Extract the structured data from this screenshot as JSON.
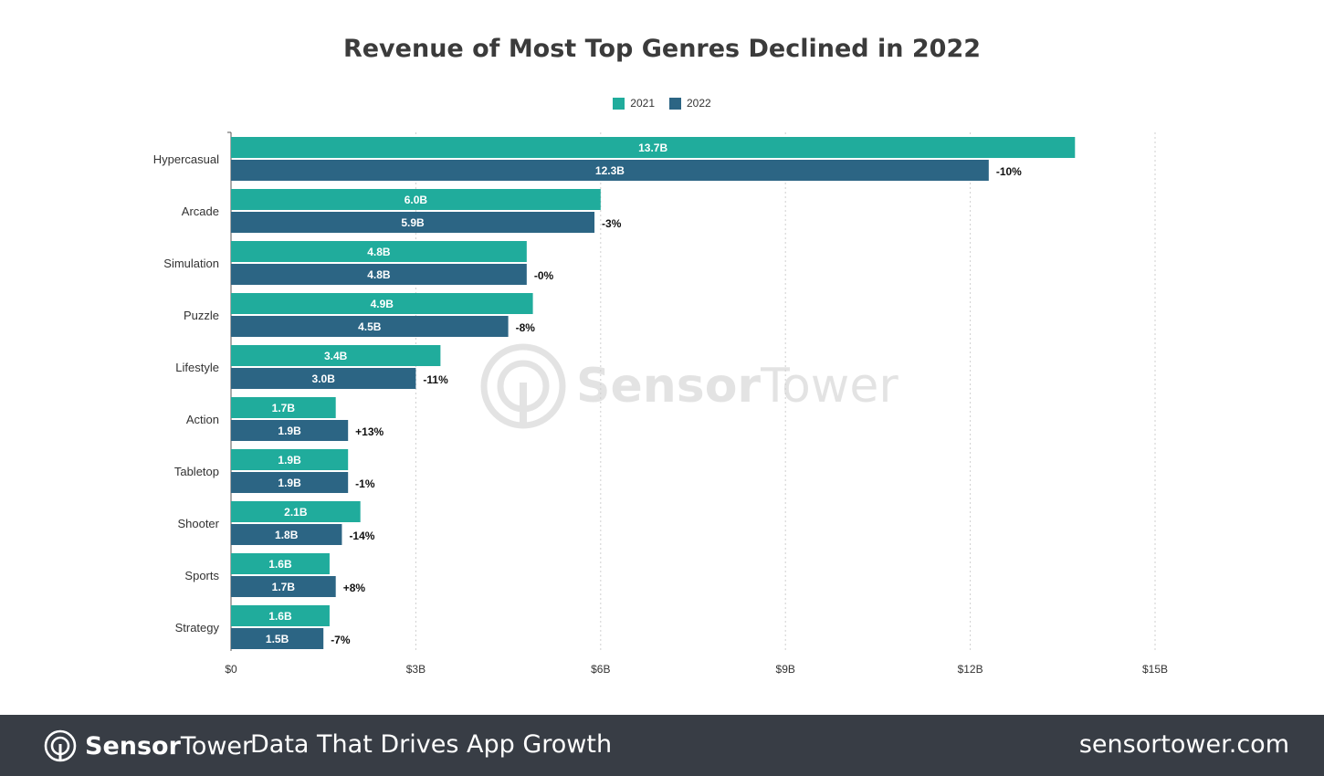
{
  "chart_data": {
    "type": "bar",
    "orientation": "horizontal",
    "title": "Revenue of Most Top Genres Declined in 2022",
    "categories": [
      "Hypercasual",
      "Arcade",
      "Simulation",
      "Puzzle",
      "Lifestyle",
      "Action",
      "Tabletop",
      "Shooter",
      "Sports",
      "Strategy"
    ],
    "series": [
      {
        "name": "2021",
        "color": "#20ac9c",
        "values": [
          13.7,
          6.0,
          4.8,
          4.9,
          3.4,
          1.7,
          1.9,
          2.1,
          1.6,
          1.6
        ],
        "labels": [
          "13.7B",
          "6.0B",
          "4.8B",
          "4.9B",
          "3.4B",
          "1.7B",
          "1.9B",
          "2.1B",
          "1.6B",
          "1.6B"
        ]
      },
      {
        "name": "2022",
        "color": "#2c6584",
        "values": [
          12.3,
          5.9,
          4.8,
          4.5,
          3.0,
          1.9,
          1.9,
          1.8,
          1.7,
          1.5
        ],
        "labels": [
          "12.3B",
          "5.9B",
          "4.8B",
          "4.5B",
          "3.0B",
          "1.9B",
          "1.9B",
          "1.8B",
          "1.7B",
          "1.5B"
        ]
      }
    ],
    "change_labels": [
      "-10%",
      "-3%",
      "-0%",
      "-8%",
      "-11%",
      "+13%",
      "-1%",
      "-14%",
      "+8%",
      "-7%"
    ],
    "xlim": [
      0,
      15
    ],
    "xticks": [
      0,
      3,
      6,
      9,
      12,
      15
    ],
    "xtick_labels": [
      "$0",
      "$3B",
      "$6B",
      "$9B",
      "$12B",
      "$15B"
    ],
    "xlabel": "",
    "ylabel": "",
    "grid": "vertical dotted",
    "legend_position": "top-center"
  },
  "watermark": {
    "bold": "Sensor",
    "light": "Tower"
  },
  "footer": {
    "brand_bold": "Sensor",
    "brand_light": "Tower",
    "tagline": "Data That Drives App Growth",
    "site": "sensortower.com",
    "background": "#383d45"
  }
}
